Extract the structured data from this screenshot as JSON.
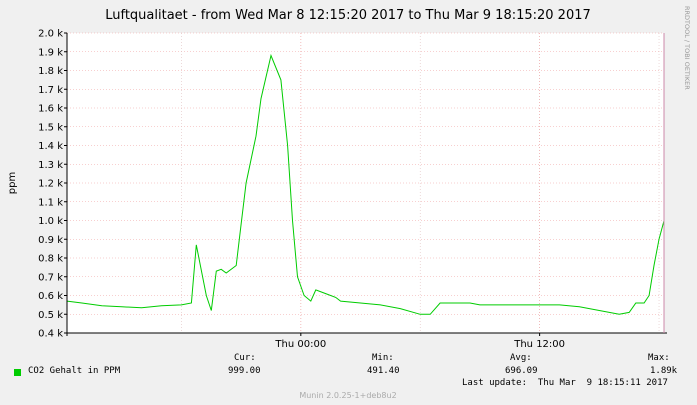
{
  "chart_data": {
    "type": "line",
    "title": "Luftqualitaet - from Wed Mar  8 12:15:20 2017 to Thu Mar  9 18:15:20 2017",
    "ylabel": "ppm",
    "xlabel": "",
    "ylim": [
      400,
      2000
    ],
    "yticks": [
      {
        "value": 400,
        "label": "0.4 k"
      },
      {
        "value": 500,
        "label": "0.5 k"
      },
      {
        "value": 600,
        "label": "0.6 k"
      },
      {
        "value": 700,
        "label": "0.7 k"
      },
      {
        "value": 800,
        "label": "0.8 k"
      },
      {
        "value": 900,
        "label": "0.9 k"
      },
      {
        "value": 1000,
        "label": "1.0 k"
      },
      {
        "value": 1100,
        "label": "1.1 k"
      },
      {
        "value": 1200,
        "label": "1.2 k"
      },
      {
        "value": 1300,
        "label": "1.3 k"
      },
      {
        "value": 1400,
        "label": "1.4 k"
      },
      {
        "value": 1500,
        "label": "1.5 k"
      },
      {
        "value": 1600,
        "label": "1.6 k"
      },
      {
        "value": 1700,
        "label": "1.7 k"
      },
      {
        "value": 1800,
        "label": "1.8 k"
      },
      {
        "value": 1900,
        "label": "1.9 k"
      },
      {
        "value": 2000,
        "label": "2.0 k"
      }
    ],
    "xlim": [
      "2017-03-08 12:15",
      "2017-03-09 18:15"
    ],
    "xticks": [
      {
        "value": "2017-03-09 00:00",
        "label": "Thu 00:00"
      },
      {
        "value": "2017-03-09 12:00",
        "label": "Thu 12:00"
      }
    ],
    "grid": true,
    "series": [
      {
        "name": "CO2 Gehalt in PPM",
        "color": "#00cc00",
        "x": [
          "2017-03-08 12:15",
          "2017-03-08 13:00",
          "2017-03-08 14:00",
          "2017-03-08 15:00",
          "2017-03-08 16:00",
          "2017-03-08 17:00",
          "2017-03-08 18:00",
          "2017-03-08 18:30",
          "2017-03-08 18:45",
          "2017-03-08 19:15",
          "2017-03-08 19:30",
          "2017-03-08 19:45",
          "2017-03-08 20:00",
          "2017-03-08 20:15",
          "2017-03-08 20:45",
          "2017-03-08 21:00",
          "2017-03-08 21:15",
          "2017-03-08 21:45",
          "2017-03-08 22:00",
          "2017-03-08 22:30",
          "2017-03-08 23:00",
          "2017-03-08 23:20",
          "2017-03-08 23:35",
          "2017-03-08 23:50",
          "2017-03-09 00:10",
          "2017-03-09 00:30",
          "2017-03-09 00:45",
          "2017-03-09 01:15",
          "2017-03-09 01:45",
          "2017-03-09 02:00",
          "2017-03-09 03:00",
          "2017-03-09 04:00",
          "2017-03-09 05:00",
          "2017-03-09 06:00",
          "2017-03-09 06:30",
          "2017-03-09 07:00",
          "2017-03-09 07:30",
          "2017-03-09 08:30",
          "2017-03-09 09:00",
          "2017-03-09 10:00",
          "2017-03-09 11:00",
          "2017-03-09 12:00",
          "2017-03-09 13:00",
          "2017-03-09 14:00",
          "2017-03-09 15:00",
          "2017-03-09 16:00",
          "2017-03-09 16:30",
          "2017-03-09 16:50",
          "2017-03-09 17:15",
          "2017-03-09 17:30",
          "2017-03-09 17:45",
          "2017-03-09 18:00",
          "2017-03-09 18:15"
        ],
        "values": [
          570,
          560,
          545,
          540,
          535,
          545,
          550,
          560,
          870,
          600,
          520,
          730,
          740,
          720,
          760,
          980,
          1200,
          1450,
          1650,
          1880,
          1750,
          1400,
          1000,
          700,
          600,
          570,
          630,
          610,
          590,
          570,
          560,
          550,
          530,
          500,
          500,
          560,
          560,
          560,
          550,
          550,
          550,
          550,
          550,
          540,
          520,
          500,
          510,
          560,
          560,
          600,
          760,
          900,
          999
        ]
      }
    ]
  },
  "legend": {
    "headers": {
      "cur": "Cur:",
      "min": "Min:",
      "avg": "Avg:",
      "max": "Max:"
    },
    "label": "CO2 Gehalt in PPM",
    "cur": "999.00",
    "min": "491.40",
    "avg": "696.09",
    "max": "1.89k",
    "last_update": "Last update:  Thu Mar  9 18:15:11 2017"
  },
  "side_label": "RRDTOOL / TOBI OETIKER",
  "footer": "Munin 2.0.25-1+deb8u2"
}
